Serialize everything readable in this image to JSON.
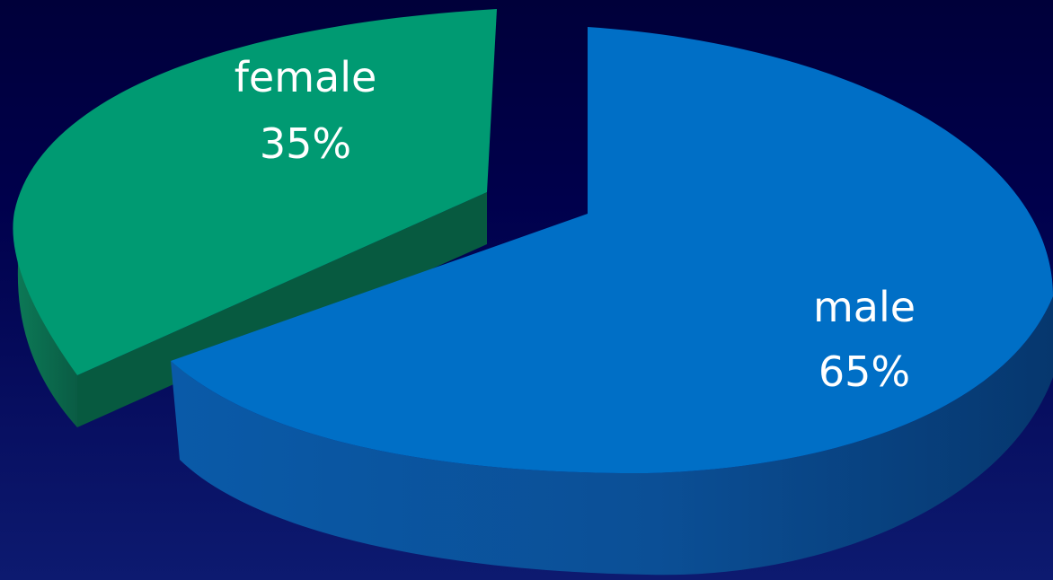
{
  "chart_data": {
    "type": "pie",
    "title": "",
    "three_d": true,
    "exploded": true,
    "legend": "none",
    "slices": [
      {
        "name": "male",
        "value": 65,
        "label": "65%",
        "color": "#006fc6"
      },
      {
        "name": "female",
        "value": 35,
        "label": "35%",
        "color": "#009a72"
      }
    ]
  }
}
